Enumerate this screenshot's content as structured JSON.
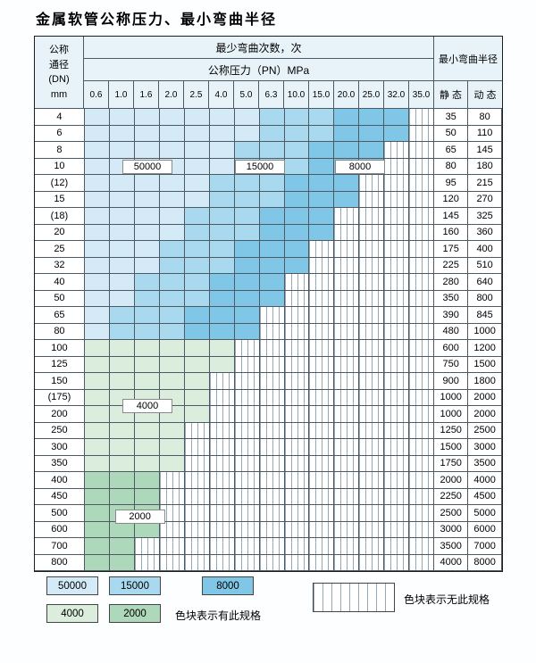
{
  "title": "金属软管公称压力、最小弯曲半径",
  "colors": {
    "c50000": "#d4ebf7",
    "c15000": "#a9d9ee",
    "c8000": "#80c6e6",
    "c4000": "#dbeedd",
    "c2000": "#aed8ba",
    "header_bg": "#e8f3f9",
    "grid": "#4d5a63",
    "hatch_line": "#95a7b2"
  },
  "header": {
    "dn_lines": [
      "公称",
      "通径",
      "(DN)",
      "mm"
    ],
    "cycles_title": "最少弯曲次数，次",
    "pressure_title": "公称压力（PN）MPa",
    "pressures": [
      "0.6",
      "1.0",
      "1.6",
      "2.0",
      "2.5",
      "4.0",
      "5.0",
      "6.3",
      "10.0",
      "15.0",
      "20.0",
      "25.0",
      "32.0",
      "35.0"
    ],
    "radius_title": "最小弯曲半径",
    "static": "静 态",
    "dynamic": "动 态"
  },
  "rows": [
    {
      "dn": "4",
      "static": "35",
      "dynamic": "80",
      "bands": [
        [
          "c50000",
          7
        ],
        [
          "c15000",
          3
        ],
        [
          "c8000",
          3
        ],
        [
          "hatch",
          1
        ]
      ]
    },
    {
      "dn": "6",
      "static": "50",
      "dynamic": "110",
      "bands": [
        [
          "c50000",
          7
        ],
        [
          "c15000",
          3
        ],
        [
          "c8000",
          3
        ],
        [
          "hatch",
          1
        ]
      ]
    },
    {
      "dn": "8",
      "static": "65",
      "dynamic": "145",
      "bands": [
        [
          "c50000",
          6
        ],
        [
          "c15000",
          3
        ],
        [
          "c8000",
          3
        ],
        [
          "hatch",
          2
        ]
      ]
    },
    {
      "dn": "10",
      "static": "80",
      "dynamic": "180",
      "bands": [
        [
          "c50000",
          6
        ],
        [
          "c15000",
          3
        ],
        [
          "c8000",
          3
        ],
        [
          "hatch",
          2
        ]
      ]
    },
    {
      "dn": "(12)",
      "static": "95",
      "dynamic": "215",
      "bands": [
        [
          "c50000",
          5
        ],
        [
          "c15000",
          3
        ],
        [
          "c8000",
          3
        ],
        [
          "hatch",
          3
        ]
      ]
    },
    {
      "dn": "15",
      "static": "120",
      "dynamic": "270",
      "bands": [
        [
          "c50000",
          5
        ],
        [
          "c15000",
          3
        ],
        [
          "c8000",
          3
        ],
        [
          "hatch",
          3
        ]
      ]
    },
    {
      "dn": "(18)",
      "static": "145",
      "dynamic": "325",
      "bands": [
        [
          "c50000",
          4
        ],
        [
          "c15000",
          3
        ],
        [
          "c8000",
          3
        ],
        [
          "hatch",
          4
        ]
      ]
    },
    {
      "dn": "20",
      "static": "160",
      "dynamic": "360",
      "bands": [
        [
          "c50000",
          4
        ],
        [
          "c15000",
          3
        ],
        [
          "c8000",
          3
        ],
        [
          "hatch",
          4
        ]
      ]
    },
    {
      "dn": "25",
      "static": "175",
      "dynamic": "400",
      "bands": [
        [
          "c50000",
          3
        ],
        [
          "c15000",
          3
        ],
        [
          "c8000",
          3
        ],
        [
          "hatch",
          5
        ]
      ]
    },
    {
      "dn": "32",
      "static": "225",
      "dynamic": "510",
      "bands": [
        [
          "c50000",
          3
        ],
        [
          "c15000",
          3
        ],
        [
          "c8000",
          3
        ],
        [
          "hatch",
          5
        ]
      ]
    },
    {
      "dn": "40",
      "static": "280",
      "dynamic": "640",
      "bands": [
        [
          "c50000",
          2
        ],
        [
          "c15000",
          3
        ],
        [
          "c8000",
          3
        ],
        [
          "hatch",
          6
        ]
      ]
    },
    {
      "dn": "50",
      "static": "350",
      "dynamic": "800",
      "bands": [
        [
          "c50000",
          2
        ],
        [
          "c15000",
          3
        ],
        [
          "c8000",
          3
        ],
        [
          "hatch",
          6
        ]
      ]
    },
    {
      "dn": "65",
      "static": "390",
      "dynamic": "845",
      "bands": [
        [
          "c50000",
          1
        ],
        [
          "c15000",
          3
        ],
        [
          "c8000",
          3
        ],
        [
          "hatch",
          7
        ]
      ]
    },
    {
      "dn": "80",
      "static": "480",
      "dynamic": "1000",
      "bands": [
        [
          "c50000",
          1
        ],
        [
          "c15000",
          3
        ],
        [
          "c8000",
          3
        ],
        [
          "hatch",
          7
        ]
      ]
    },
    {
      "dn": "100",
      "static": "600",
      "dynamic": "1200",
      "bands": [
        [
          "c4000",
          6
        ],
        [
          "hatch",
          8
        ]
      ]
    },
    {
      "dn": "125",
      "static": "750",
      "dynamic": "1500",
      "bands": [
        [
          "c4000",
          6
        ],
        [
          "hatch",
          8
        ]
      ]
    },
    {
      "dn": "150",
      "static": "900",
      "dynamic": "1800",
      "bands": [
        [
          "c4000",
          5
        ],
        [
          "hatch",
          9
        ]
      ]
    },
    {
      "dn": "(175)",
      "static": "1000",
      "dynamic": "2000",
      "bands": [
        [
          "c4000",
          5
        ],
        [
          "hatch",
          9
        ]
      ]
    },
    {
      "dn": "200",
      "static": "1000",
      "dynamic": "2000",
      "bands": [
        [
          "c4000",
          5
        ],
        [
          "hatch",
          9
        ]
      ]
    },
    {
      "dn": "250",
      "static": "1250",
      "dynamic": "2500",
      "bands": [
        [
          "c4000",
          4
        ],
        [
          "hatch",
          10
        ]
      ]
    },
    {
      "dn": "300",
      "static": "1500",
      "dynamic": "3000",
      "bands": [
        [
          "c4000",
          4
        ],
        [
          "hatch",
          10
        ]
      ]
    },
    {
      "dn": "350",
      "static": "1750",
      "dynamic": "3500",
      "bands": [
        [
          "c4000",
          4
        ],
        [
          "hatch",
          10
        ]
      ]
    },
    {
      "dn": "400",
      "static": "2000",
      "dynamic": "4000",
      "bands": [
        [
          "c2000",
          3
        ],
        [
          "hatch",
          11
        ]
      ]
    },
    {
      "dn": "450",
      "static": "2250",
      "dynamic": "4500",
      "bands": [
        [
          "c2000",
          3
        ],
        [
          "hatch",
          11
        ]
      ]
    },
    {
      "dn": "500",
      "static": "2500",
      "dynamic": "5000",
      "bands": [
        [
          "c2000",
          3
        ],
        [
          "hatch",
          11
        ]
      ]
    },
    {
      "dn": "600",
      "static": "3000",
      "dynamic": "6000",
      "bands": [
        [
          "c2000",
          3
        ],
        [
          "hatch",
          11
        ]
      ]
    },
    {
      "dn": "700",
      "static": "3500",
      "dynamic": "7000",
      "bands": [
        [
          "c2000",
          2
        ],
        [
          "hatch",
          12
        ]
      ]
    },
    {
      "dn": "800",
      "static": "4000",
      "dynamic": "8000",
      "bands": [
        [
          "c2000",
          2
        ],
        [
          "hatch",
          12
        ]
      ]
    }
  ],
  "overlay_labels": [
    {
      "text": "50000",
      "row": 3,
      "col": 1.5,
      "span": 2
    },
    {
      "text": "15000",
      "row": 3,
      "col": 6,
      "span": 2
    },
    {
      "text": "8000",
      "row": 3,
      "col": 10,
      "span": 2
    },
    {
      "text": "4000",
      "row": 17.5,
      "col": 1.5,
      "span": 2
    },
    {
      "text": "2000",
      "row": 24.2,
      "col": 1.2,
      "span": 2
    }
  ],
  "legend": {
    "items": [
      {
        "label": "50000",
        "color": "c50000"
      },
      {
        "label": "15000",
        "color": "c15000"
      },
      {
        "label": "8000",
        "color": "c8000"
      },
      {
        "label": "4000",
        "color": "c4000"
      },
      {
        "label": "2000",
        "color": "c2000"
      }
    ],
    "has_spec": "色块表示有此规格",
    "no_spec": "色块表示无此规格"
  }
}
